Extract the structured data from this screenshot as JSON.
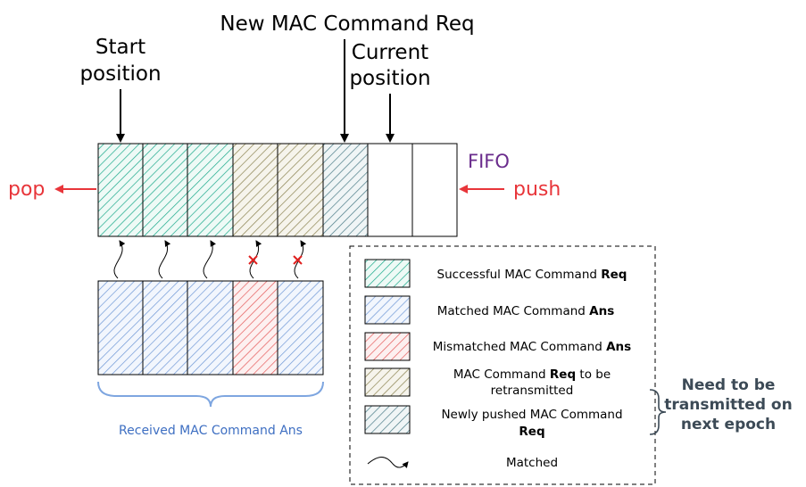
{
  "labels": {
    "new_req": "New MAC Command Req",
    "start_line1": "Start",
    "start_line2": "position",
    "current_line1": "Current",
    "current_line2": "position",
    "fifo": "FIFO",
    "pop": "pop",
    "push": "push",
    "received": "Received MAC Command Ans"
  },
  "fifo_cells": [
    "successful-req",
    "successful-req",
    "successful-req",
    "retransmit-req",
    "retransmit-req",
    "newly-pushed-req",
    "empty",
    "empty"
  ],
  "ans_cells": [
    "matched-ans",
    "matched-ans",
    "matched-ans",
    "mismatched-ans",
    "matched-ans"
  ],
  "links": [
    "matched",
    "matched",
    "matched",
    "mismatched",
    "mismatched"
  ],
  "legend": {
    "successful_pre": "Successful MAC Command ",
    "successful_bold": "Req",
    "matched_pre": "Matched MAC Command ",
    "matched_bold": "Ans",
    "mismatched_pre": "Mismatched MAC Command ",
    "mismatched_bold": "Ans",
    "retrans_pre": "MAC Command ",
    "retrans_bold": "Req",
    "retrans_post": " to be",
    "retrans_line2": "retransmitted",
    "newly_line1": "Newly pushed MAC Command",
    "newly_bold": "Req",
    "matched_arrow": "Matched"
  },
  "note": {
    "line1": "Need to be",
    "line2": "transmitted on",
    "line3": "next epoch"
  },
  "colors": {
    "successful": "#1aa98a",
    "matched": "#6e97d6",
    "mismatched": "#e55a5a",
    "retransmit": "#8a8250",
    "newly": "#4a7a86",
    "red": "#e8353a",
    "fifo": "#6a2c8c",
    "brace": "#7ea6e0",
    "cross": "#e0201f"
  }
}
